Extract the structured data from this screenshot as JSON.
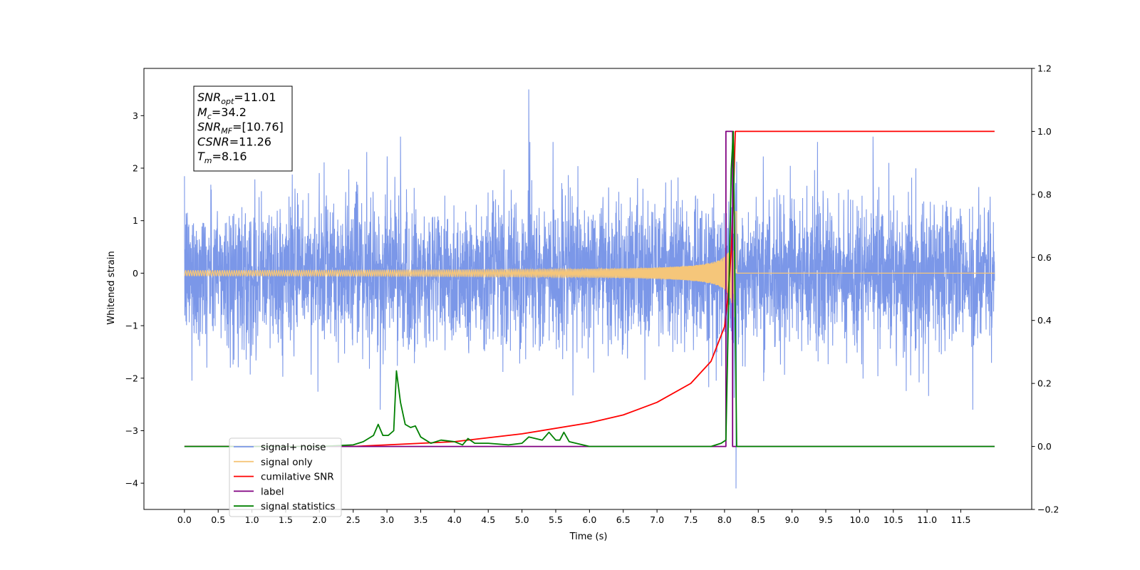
{
  "chart_data": {
    "type": "line",
    "xlabel": "Time (s)",
    "ylabel": "Whitened strain",
    "xlim": [
      -0.6,
      12.55
    ],
    "ylim": [
      -4.5,
      3.9
    ],
    "y2lim": [
      -0.2,
      1.2
    ],
    "x_ticks": [
      "0.0",
      "0.5",
      "1.0",
      "1.5",
      "2.0",
      "2.5",
      "3.0",
      "3.5",
      "4.0",
      "4.5",
      "5.0",
      "5.5",
      "6.0",
      "6.5",
      "7.0",
      "7.5",
      "8.0",
      "8.5",
      "9.0",
      "9.5",
      "10.0",
      "10.5",
      "11.0",
      "11.5"
    ],
    "y_ticks": [
      "3",
      "2",
      "1",
      "0",
      "−1",
      "−2",
      "−3",
      "−4"
    ],
    "y2_ticks": [
      "1.2",
      "1.0",
      "0.8",
      "0.6",
      "0.4",
      "0.2",
      "0.0",
      "−0.2"
    ],
    "annotation": {
      "lines": [
        {
          "sym": "SNR",
          "sub": "opt",
          "val": "=11.01"
        },
        {
          "sym": "M",
          "sub": "c",
          "val": "=34.2"
        },
        {
          "sym": "SNR",
          "sub": "MF",
          "val": "=[10.76]"
        },
        {
          "sym": "CSNR",
          "sub": "",
          "val": "=11.26"
        },
        {
          "sym": "T",
          "sub": "m",
          "val": "=8.16"
        }
      ]
    },
    "legend": {
      "placement": "lower-left",
      "entries": [
        {
          "label": "signal+ noise",
          "color": "#7b97e8"
        },
        {
          "label": "signal only",
          "color": "#f5c67a"
        },
        {
          "label": "cumilative SNR",
          "color": "#ff0000"
        },
        {
          "label": "label",
          "color": "#800080"
        },
        {
          "label": "signal statistics",
          "color": "#008000"
        }
      ]
    },
    "series": [
      {
        "name": "signal+ noise",
        "axis": "left",
        "color": "#7b97e8",
        "x_range": [
          0.0,
          12.0
        ],
        "noise_std": 0.95,
        "notable_points": [
          [
            5.1,
            3.5
          ],
          [
            8.17,
            -4.1
          ],
          [
            10.2,
            2.6
          ],
          [
            3.2,
            2.6
          ],
          [
            2.9,
            -2.6
          ]
        ]
      },
      {
        "name": "signal only",
        "axis": "left",
        "color": "#f5c67a",
        "chirp_merger_time": 8.16,
        "peak_amplitude": 1.35
      },
      {
        "name": "cumilative SNR",
        "axis": "right",
        "color": "#ff0000",
        "x": [
          0.0,
          2.5,
          3.0,
          4.0,
          5.0,
          6.0,
          6.5,
          7.0,
          7.5,
          7.8,
          8.0,
          8.05,
          8.1,
          8.14,
          8.16,
          8.2,
          12.0
        ],
        "y": [
          0.0,
          0.0,
          0.005,
          0.015,
          0.04,
          0.075,
          0.1,
          0.14,
          0.2,
          0.27,
          0.38,
          0.47,
          0.62,
          0.85,
          1.0,
          1.0,
          1.0
        ]
      },
      {
        "name": "label",
        "axis": "right",
        "color": "#800080",
        "x": [
          0.0,
          8.02,
          8.02,
          8.12,
          8.12,
          12.0
        ],
        "y": [
          0.0,
          0.0,
          1.0,
          1.0,
          0.0,
          0.0
        ]
      },
      {
        "name": "signal statistics",
        "axis": "right",
        "color": "#008000",
        "x": [
          0.0,
          2.0,
          2.5,
          2.65,
          2.8,
          2.87,
          2.94,
          3.02,
          3.1,
          3.14,
          3.2,
          3.27,
          3.35,
          3.42,
          3.5,
          3.65,
          3.8,
          4.0,
          4.12,
          4.2,
          4.3,
          4.5,
          4.8,
          5.0,
          5.1,
          5.2,
          5.3,
          5.4,
          5.5,
          5.56,
          5.62,
          5.7,
          5.8,
          6.0,
          7.8,
          7.95,
          8.02,
          8.06,
          8.1,
          8.13,
          8.16,
          8.18,
          12.0
        ],
        "y": [
          0.0,
          0.0,
          0.005,
          0.015,
          0.035,
          0.07,
          0.035,
          0.035,
          0.05,
          0.24,
          0.14,
          0.07,
          0.06,
          0.065,
          0.03,
          0.01,
          0.02,
          0.015,
          0.005,
          0.025,
          0.01,
          0.01,
          0.005,
          0.01,
          0.03,
          0.025,
          0.02,
          0.045,
          0.02,
          0.02,
          0.045,
          0.015,
          0.01,
          0.0,
          0.0,
          0.01,
          0.02,
          0.45,
          0.88,
          1.0,
          0.4,
          0.0,
          0.0
        ]
      }
    ]
  }
}
